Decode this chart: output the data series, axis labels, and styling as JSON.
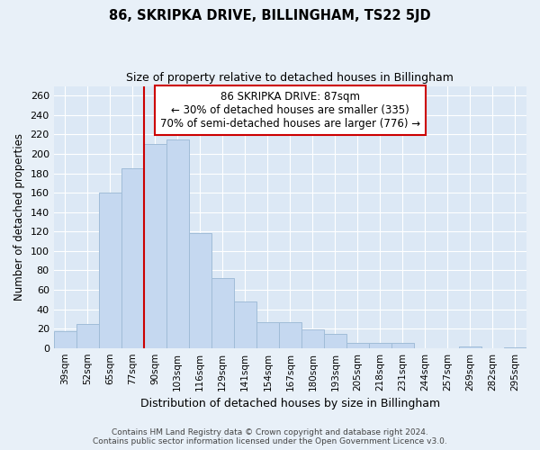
{
  "title": "86, SKRIPKA DRIVE, BILLINGHAM, TS22 5JD",
  "subtitle": "Size of property relative to detached houses in Billingham",
  "xlabel": "Distribution of detached houses by size in Billingham",
  "ylabel": "Number of detached properties",
  "bar_color": "#c5d8f0",
  "bar_edge_color": "#a0bcd8",
  "categories": [
    "39sqm",
    "52sqm",
    "65sqm",
    "77sqm",
    "90sqm",
    "103sqm",
    "116sqm",
    "129sqm",
    "141sqm",
    "154sqm",
    "167sqm",
    "180sqm",
    "193sqm",
    "205sqm",
    "218sqm",
    "231sqm",
    "244sqm",
    "257sqm",
    "269sqm",
    "282sqm",
    "295sqm"
  ],
  "values": [
    17,
    25,
    160,
    185,
    210,
    215,
    118,
    72,
    48,
    27,
    27,
    19,
    15,
    5,
    5,
    5,
    0,
    0,
    2,
    0,
    1
  ],
  "ylim": [
    0,
    270
  ],
  "yticks": [
    0,
    20,
    40,
    60,
    80,
    100,
    120,
    140,
    160,
    180,
    200,
    220,
    240,
    260
  ],
  "vline_x_idx": 4,
  "vline_color": "#cc0000",
  "annotation_line1": "86 SKRIPKA DRIVE: 87sqm",
  "annotation_line2": "← 30% of detached houses are smaller (335)",
  "annotation_line3": "70% of semi-detached houses are larger (776) →",
  "annotation_box_color": "#ffffff",
  "annotation_box_edge": "#cc0000",
  "footer1": "Contains HM Land Registry data © Crown copyright and database right 2024.",
  "footer2": "Contains public sector information licensed under the Open Government Licence v3.0.",
  "background_color": "#e8f0f8",
  "plot_bg_color": "#dce8f5",
  "grid_color": "#ffffff"
}
